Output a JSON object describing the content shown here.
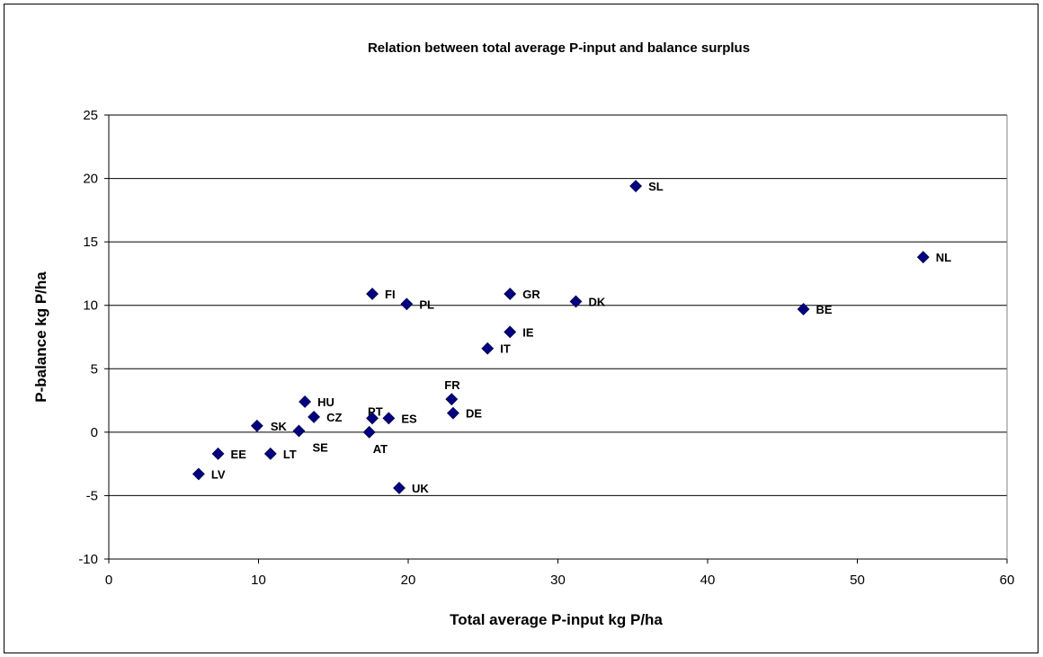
{
  "chart_data": {
    "type": "scatter",
    "title": "Relation between total average P-input and balance surplus",
    "xlabel": "Total average P-input kg P/ha",
    "ylabel": "P-balance kg P/ha",
    "xlim": [
      0,
      60
    ],
    "ylim": [
      -10,
      25
    ],
    "xticks": [
      0,
      10,
      20,
      30,
      40,
      50,
      60
    ],
    "yticks": [
      -10,
      -5,
      0,
      5,
      10,
      15,
      20,
      25
    ],
    "grid": "horizontal",
    "marker_color": "#000080",
    "points": [
      {
        "label": "SL",
        "x": 35.2,
        "y": 19.4
      },
      {
        "label": "NL",
        "x": 54.4,
        "y": 13.8
      },
      {
        "label": "FI",
        "x": 17.6,
        "y": 10.9
      },
      {
        "label": "GR",
        "x": 26.8,
        "y": 10.9
      },
      {
        "label": "DK",
        "x": 31.2,
        "y": 10.3
      },
      {
        "label": "PL",
        "x": 19.9,
        "y": 10.1
      },
      {
        "label": "BE",
        "x": 46.4,
        "y": 9.7
      },
      {
        "label": "IE",
        "x": 26.8,
        "y": 7.9
      },
      {
        "label": "IT",
        "x": 25.3,
        "y": 6.6
      },
      {
        "label": "FR",
        "x": 22.9,
        "y": 2.6
      },
      {
        "label": "HU",
        "x": 13.1,
        "y": 2.4
      },
      {
        "label": "DE",
        "x": 23.0,
        "y": 1.5
      },
      {
        "label": "CZ",
        "x": 13.7,
        "y": 1.2
      },
      {
        "label": "PT",
        "x": 17.6,
        "y": 1.1
      },
      {
        "label": "ES",
        "x": 18.7,
        "y": 1.1
      },
      {
        "label": "SK",
        "x": 9.9,
        "y": 0.5
      },
      {
        "label": "SE",
        "x": 12.7,
        "y": 0.1
      },
      {
        "label": "AT",
        "x": 17.4,
        "y": 0.0
      },
      {
        "label": "EE",
        "x": 7.3,
        "y": -1.7
      },
      {
        "label": "LT",
        "x": 10.8,
        "y": -1.7
      },
      {
        "label": "LV",
        "x": 6.0,
        "y": -3.3
      },
      {
        "label": "UK",
        "x": 19.4,
        "y": -4.4
      }
    ]
  }
}
